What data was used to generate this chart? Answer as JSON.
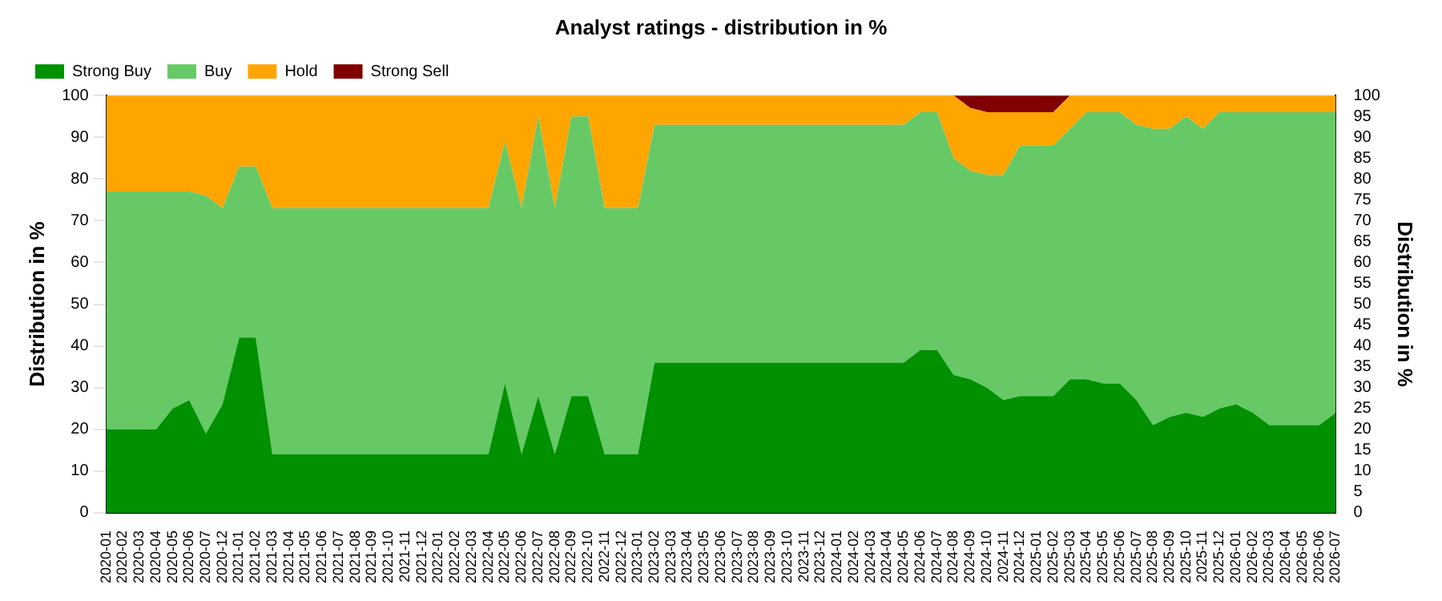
{
  "chart_data": {
    "type": "area",
    "title": "Analyst ratings - distribution in %",
    "ylabel": "Distribution in %",
    "y2label": "Distribution in %",
    "categories": [
      "2020-01",
      "2020-02",
      "2020-03",
      "2020-04",
      "2020-05",
      "2020-06",
      "2020-07",
      "2020-12",
      "2021-01",
      "2021-02",
      "2021-03",
      "2021-04",
      "2021-05",
      "2021-06",
      "2021-07",
      "2021-08",
      "2021-09",
      "2021-10",
      "2021-11",
      "2021-12",
      "2022-01",
      "2022-02",
      "2022-03",
      "2022-04",
      "2022-05",
      "2022-06",
      "2022-07",
      "2022-08",
      "2022-09",
      "2022-10",
      "2022-11",
      "2022-12",
      "2023-01",
      "2023-02",
      "2023-03",
      "2023-04",
      "2023-05",
      "2023-06",
      "2023-07",
      "2023-08",
      "2023-09",
      "2023-10",
      "2023-11",
      "2023-12",
      "2024-01",
      "2024-02",
      "2024-03",
      "2024-04",
      "2024-05",
      "2024-06",
      "2024-07",
      "2024-08",
      "2024-09",
      "2024-10",
      "2024-11",
      "2024-12",
      "2025-01",
      "2025-02",
      "2025-03",
      "2025-04",
      "2025-05",
      "2025-06",
      "2025-07",
      "2025-08",
      "2025-09",
      "2025-10",
      "2025-11",
      "2025-12",
      "2026-01",
      "2026-02",
      "2026-03",
      "2026-04",
      "2026-05",
      "2026-06",
      "2026-07"
    ],
    "series": [
      {
        "name": "Strong Buy",
        "color": "#009000",
        "values": [
          20,
          20,
          20,
          20,
          25,
          27,
          19,
          26,
          42,
          42,
          14,
          14,
          14,
          14,
          14,
          14,
          14,
          14,
          14,
          14,
          14,
          14,
          14,
          14,
          31,
          14,
          28,
          14,
          28,
          28,
          14,
          14,
          14,
          36,
          36,
          36,
          36,
          36,
          36,
          36,
          36,
          36,
          36,
          36,
          36,
          36,
          36,
          36,
          36,
          39,
          39,
          33,
          32,
          30,
          27,
          28,
          28,
          28,
          32,
          32,
          31,
          31,
          27,
          21,
          23,
          24,
          23,
          25,
          26,
          24,
          21,
          21,
          21,
          21,
          24
        ]
      },
      {
        "name": "Buy",
        "color": "#66c966",
        "values": [
          57,
          57,
          57,
          57,
          52,
          50,
          57,
          47,
          41,
          41,
          59,
          59,
          59,
          59,
          59,
          59,
          59,
          59,
          59,
          59,
          59,
          59,
          59,
          59,
          58,
          59,
          67,
          59,
          67,
          67,
          59,
          59,
          59,
          57,
          57,
          57,
          57,
          57,
          57,
          57,
          57,
          57,
          57,
          57,
          57,
          57,
          57,
          57,
          57,
          57,
          57,
          52,
          50,
          51,
          54,
          60,
          60,
          60,
          60,
          64,
          65,
          65,
          66,
          71,
          69,
          71,
          69,
          71,
          70,
          72,
          75,
          75,
          75,
          75,
          72
        ]
      },
      {
        "name": "Hold",
        "color": "#ffa500",
        "values": [
          23,
          23,
          23,
          23,
          23,
          23,
          24,
          27,
          17,
          17,
          27,
          27,
          27,
          27,
          27,
          27,
          27,
          27,
          27,
          27,
          27,
          27,
          27,
          27,
          11,
          27,
          5,
          27,
          5,
          5,
          27,
          27,
          27,
          7,
          7,
          7,
          7,
          7,
          7,
          7,
          7,
          7,
          7,
          7,
          7,
          7,
          7,
          7,
          7,
          4,
          4,
          15,
          15,
          15,
          15,
          8,
          8,
          8,
          8,
          4,
          4,
          4,
          7,
          8,
          8,
          5,
          8,
          4,
          4,
          4,
          4,
          4,
          4,
          4,
          4
        ]
      },
      {
        "name": "Strong Sell",
        "color": "#800000",
        "values": [
          0,
          0,
          0,
          0,
          0,
          0,
          0,
          0,
          0,
          0,
          0,
          0,
          0,
          0,
          0,
          0,
          0,
          0,
          0,
          0,
          0,
          0,
          0,
          0,
          0,
          0,
          0,
          0,
          0,
          0,
          0,
          0,
          0,
          0,
          0,
          0,
          0,
          0,
          0,
          0,
          0,
          0,
          0,
          0,
          0,
          0,
          0,
          0,
          0,
          0,
          0,
          0,
          3,
          4,
          4,
          4,
          4,
          4,
          0,
          0,
          0,
          0,
          0,
          0,
          0,
          0,
          0,
          0,
          0,
          0,
          0,
          0,
          0,
          0,
          0
        ]
      }
    ],
    "stacked": true,
    "ylim": [
      0,
      100
    ],
    "yticks": [
      0,
      10,
      20,
      30,
      40,
      50,
      60,
      70,
      80,
      90,
      100
    ],
    "y2lim": [
      0,
      100
    ],
    "y2ticks": [
      0,
      5,
      10,
      15,
      20,
      25,
      30,
      35,
      40,
      45,
      50,
      55,
      60,
      65,
      70,
      75,
      80,
      85,
      90,
      95,
      100
    ],
    "grid": "y",
    "legend": "top left",
    "marker": "none"
  }
}
